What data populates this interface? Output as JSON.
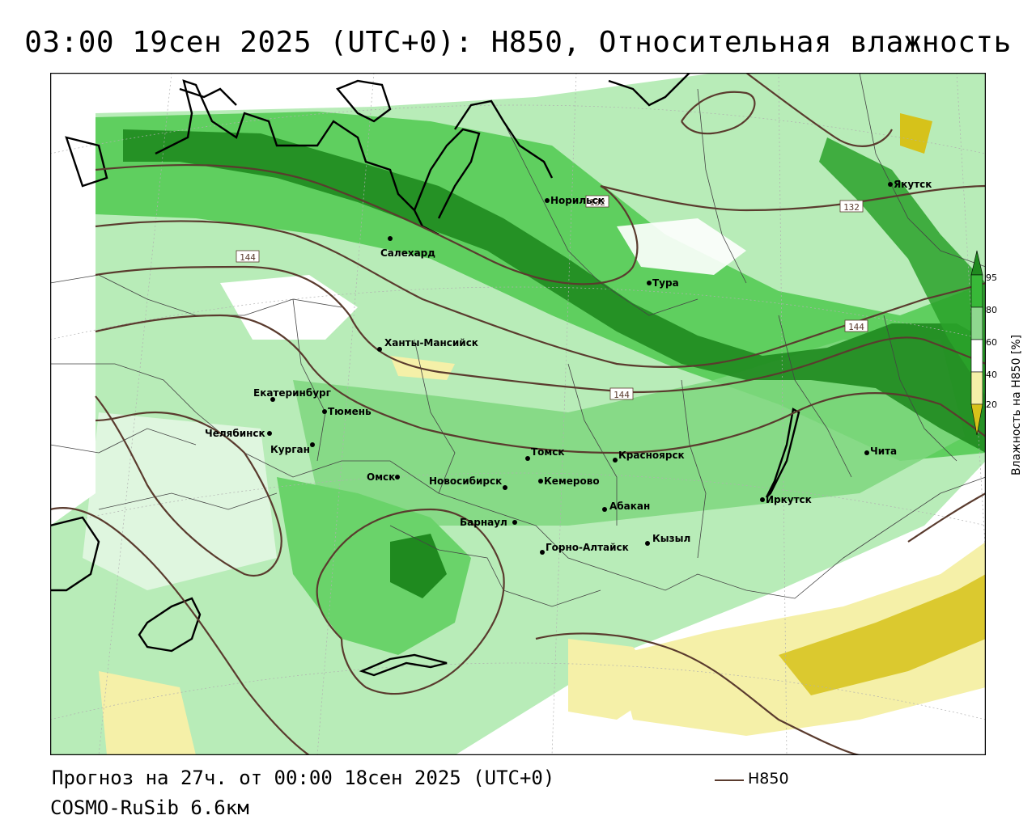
{
  "title": "03:00 19сен 2025 (UTC+0): H850, Относительная влажность",
  "footer": {
    "forecast": "Прогноз на 27ч. от 00:00 18сен 2025 (UTC+0)",
    "model": "COSMO-RuSib 6.6км"
  },
  "legend": {
    "line_label": "H850",
    "line_color": "#5a3b2e"
  },
  "colorbar": {
    "title": "Влажность на H850 [%]",
    "ticks": [
      "95",
      "80",
      "60",
      "40",
      "20"
    ],
    "colors": [
      "#1f8a1f",
      "#38b838",
      "#8fd88f",
      "#ffffff",
      "#f5f0a8",
      "#d6c21a"
    ]
  },
  "isolines": [
    {
      "label": "132"
    },
    {
      "label": "132"
    },
    {
      "label": "144"
    },
    {
      "label": "144"
    },
    {
      "label": "144"
    }
  ],
  "cities": [
    {
      "name": "Норильск"
    },
    {
      "name": "Якутск"
    },
    {
      "name": "Салехард"
    },
    {
      "name": "Тура"
    },
    {
      "name": "Ханты-Мансийск"
    },
    {
      "name": "Екатеринбург"
    },
    {
      "name": "Тюмень"
    },
    {
      "name": "Челябинск"
    },
    {
      "name": "Курган"
    },
    {
      "name": "Омск"
    },
    {
      "name": "Новосибирск"
    },
    {
      "name": "Томск"
    },
    {
      "name": "Кемерово"
    },
    {
      "name": "Красноярск"
    },
    {
      "name": "Абакан"
    },
    {
      "name": "Барнаул"
    },
    {
      "name": "Горно-Алтайск"
    },
    {
      "name": "Кызыл"
    },
    {
      "name": "Иркутск"
    },
    {
      "name": "Чита"
    }
  ]
}
